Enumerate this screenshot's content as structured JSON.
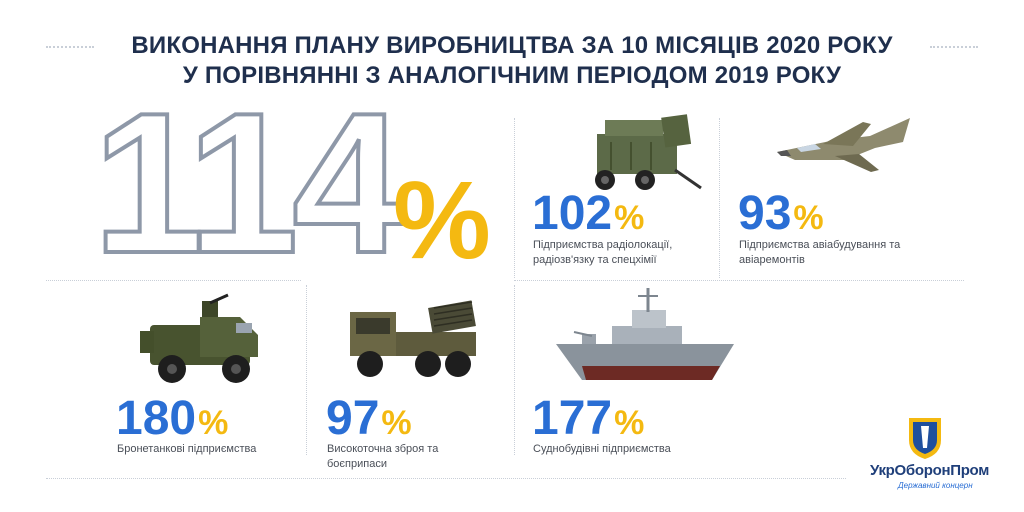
{
  "header": {
    "title_line1": "ВИКОНАННЯ ПЛАНУ ВИРОБНИЦТВА ЗА 10 МІСЯЦІВ 2020 РОКУ",
    "title_line2": "У ПОРІВНЯННІ З АНАЛОГІЧНИМ ПЕРІОДОМ 2019 РОКУ"
  },
  "total": {
    "value": "114",
    "symbol": "%"
  },
  "sectors": [
    {
      "value": "102",
      "symbol": "%",
      "label": "Підприємства радіолокації, радіозв'язку та спецхімії",
      "icon": "radar-trailer-icon"
    },
    {
      "value": "93",
      "symbol": "%",
      "label": "Підприємства авіабудування та авіаремонтів",
      "icon": "jet-aircraft-icon"
    },
    {
      "value": "180",
      "symbol": "%",
      "label": "Бронетанкові підприємства",
      "icon": "armored-vehicle-icon"
    },
    {
      "value": "97",
      "symbol": "%",
      "label": "Високоточна зброя та боєприпаси",
      "icon": "rocket-launcher-truck-icon"
    },
    {
      "value": "177",
      "symbol": "%",
      "label": "Суднобудівні підприємства",
      "icon": "warship-icon"
    }
  ],
  "logo": {
    "name": "УкрОборонПром",
    "subtitle": "Державний концерн"
  },
  "colors": {
    "value": "#2a6ed4",
    "accent": "#f4b911",
    "title": "#1f2f4d"
  }
}
